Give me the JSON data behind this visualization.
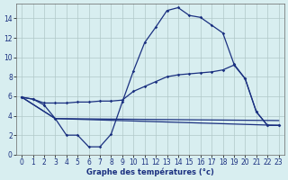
{
  "xlabel": "Graphe des températures (°c)",
  "background_color": "#d8eef0",
  "grid_color": "#b0c8c8",
  "line_color": "#1a3080",
  "xlim": [
    -0.5,
    23.5
  ],
  "ylim": [
    0,
    15.5
  ],
  "xticks": [
    0,
    1,
    2,
    3,
    4,
    5,
    6,
    7,
    8,
    9,
    10,
    11,
    12,
    13,
    14,
    15,
    16,
    17,
    18,
    19,
    20,
    21,
    22,
    23
  ],
  "yticks": [
    0,
    2,
    4,
    6,
    8,
    10,
    12,
    14
  ],
  "line1_x": [
    0,
    1,
    2,
    3,
    4,
    5,
    6,
    7,
    8,
    9,
    10,
    11,
    12,
    13,
    14,
    15,
    16,
    17,
    18,
    19,
    20,
    21,
    22,
    23
  ],
  "line1_y": [
    5.9,
    5.7,
    5.1,
    3.7,
    2.0,
    2.0,
    0.8,
    0.8,
    2.1,
    5.4,
    8.6,
    11.5,
    13.1,
    14.8,
    15.1,
    14.3,
    14.1,
    13.3,
    12.5,
    9.3,
    7.8,
    4.4,
    3.0,
    3.0
  ],
  "line2_x": [
    0,
    1,
    2,
    3,
    4,
    5,
    6,
    7,
    8,
    9,
    10,
    11,
    12,
    13,
    14,
    15,
    16,
    17,
    18,
    19,
    20,
    21,
    22,
    23
  ],
  "line2_y": [
    5.9,
    5.7,
    5.3,
    5.3,
    5.3,
    5.4,
    5.4,
    5.5,
    5.5,
    5.6,
    6.5,
    7.0,
    7.5,
    8.0,
    8.2,
    8.3,
    8.4,
    8.5,
    8.7,
    9.2,
    7.8,
    4.4,
    3.0,
    3.0
  ],
  "line3_x": [
    0,
    3,
    23
  ],
  "line3_y": [
    5.9,
    3.7,
    3.0
  ],
  "line4_x": [
    0,
    3,
    23
  ],
  "line4_y": [
    5.9,
    3.7,
    3.5
  ]
}
